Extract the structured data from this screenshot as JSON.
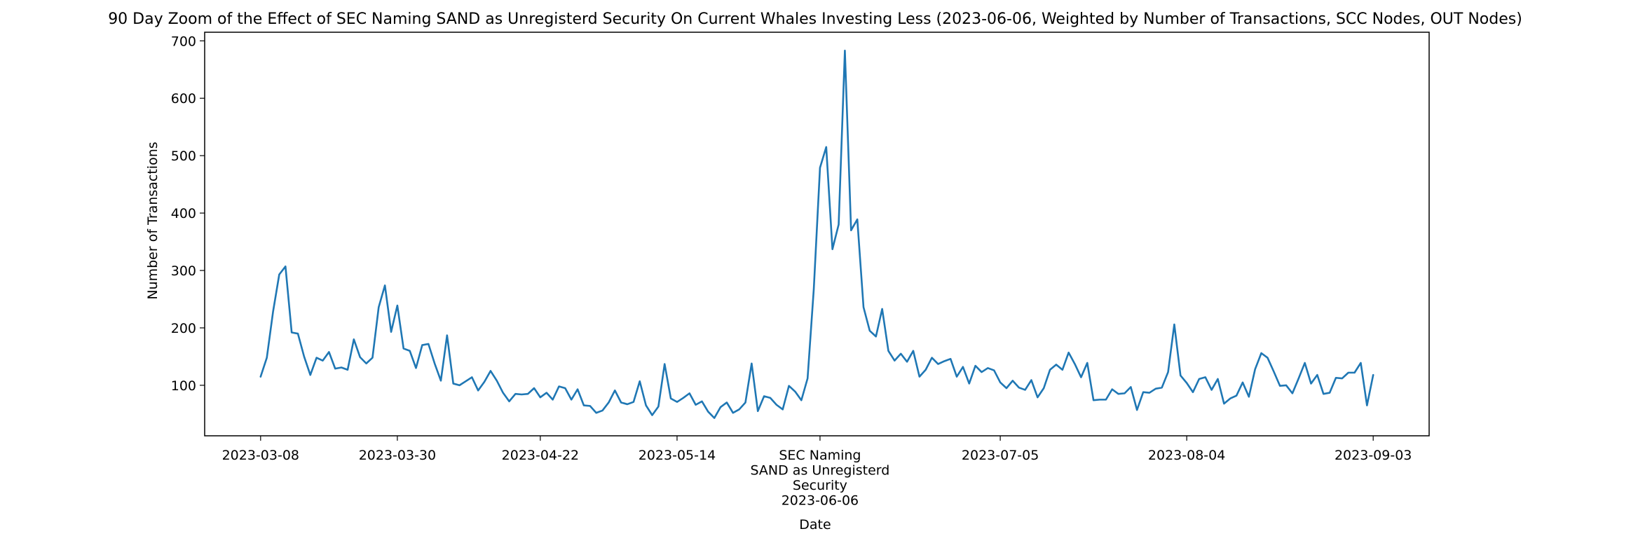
{
  "chart_data": {
    "type": "line",
    "title": "90 Day Zoom of the Effect of SEC Naming SAND as Unregisterd Security On Current Whales Investing Less (2023-06-06, Weighted by Number of Transactions, SCC Nodes, OUT Nodes)",
    "xlabel": "Date",
    "ylabel": "Number of Transactions",
    "x_range": [
      "2023-02-27",
      "2023-09-12"
    ],
    "ylim": [
      12,
      715
    ],
    "grid": false,
    "legend": "none",
    "line_color": "#1f77b4",
    "x_ticks": [
      {
        "date": "2023-03-08",
        "lines": [
          "2023-03-08"
        ]
      },
      {
        "date": "2023-03-30",
        "lines": [
          "2023-03-30"
        ]
      },
      {
        "date": "2023-04-22",
        "lines": [
          "2023-04-22"
        ]
      },
      {
        "date": "2023-05-14",
        "lines": [
          "2023-05-14"
        ]
      },
      {
        "date": "2023-06-06",
        "lines": [
          "SEC Naming",
          "SAND as Unregisterd",
          "Security",
          "2023-06-06"
        ]
      },
      {
        "date": "2023-07-05",
        "lines": [
          "2023-07-05"
        ]
      },
      {
        "date": "2023-08-04",
        "lines": [
          "2023-08-04"
        ]
      },
      {
        "date": "2023-09-03",
        "lines": [
          "2023-09-03"
        ]
      }
    ],
    "y_ticks": [
      "100",
      "200",
      "300",
      "400",
      "500",
      "600",
      "700"
    ],
    "start_date": "2023-03-08",
    "values": [
      115,
      148,
      228,
      293,
      307,
      192,
      190,
      150,
      118,
      148,
      143,
      158,
      129,
      131,
      127,
      180,
      149,
      138,
      148,
      236,
      274,
      193,
      239,
      164,
      160,
      130,
      170,
      172,
      138,
      108,
      187,
      103,
      100,
      107,
      114,
      91,
      106,
      125,
      108,
      87,
      72,
      85,
      84,
      85,
      95,
      79,
      87,
      75,
      98,
      95,
      75,
      93,
      65,
      64,
      52,
      56,
      70,
      91,
      70,
      67,
      71,
      107,
      65,
      48,
      63,
      137,
      77,
      71,
      78,
      86,
      66,
      72,
      54,
      43,
      62,
      70,
      52,
      58,
      70,
      138,
      55,
      81,
      78,
      66,
      58,
      99,
      89,
      74,
      112,
      268,
      479,
      515,
      337,
      380,
      683,
      370,
      389,
      236,
      195,
      185,
      233,
      160,
      143,
      155,
      141,
      160,
      115,
      127,
      148,
      137,
      142,
      146,
      115,
      132,
      103,
      134,
      123,
      130,
      126,
      105,
      95,
      108,
      96,
      92,
      109,
      79,
      95,
      127,
      136,
      127,
      157,
      137,
      114,
      139,
      74,
      75,
      75,
      93,
      85,
      86,
      97,
      57,
      88,
      87,
      94,
      96,
      123,
      206,
      117,
      104,
      88,
      111,
      114,
      92,
      111,
      68,
      77,
      82,
      105,
      80,
      128,
      156,
      148,
      124,
      99,
      100,
      86,
      112,
      139,
      103,
      118,
      85,
      87,
      113,
      112,
      122,
      122,
      139,
      65,
      118
    ]
  }
}
